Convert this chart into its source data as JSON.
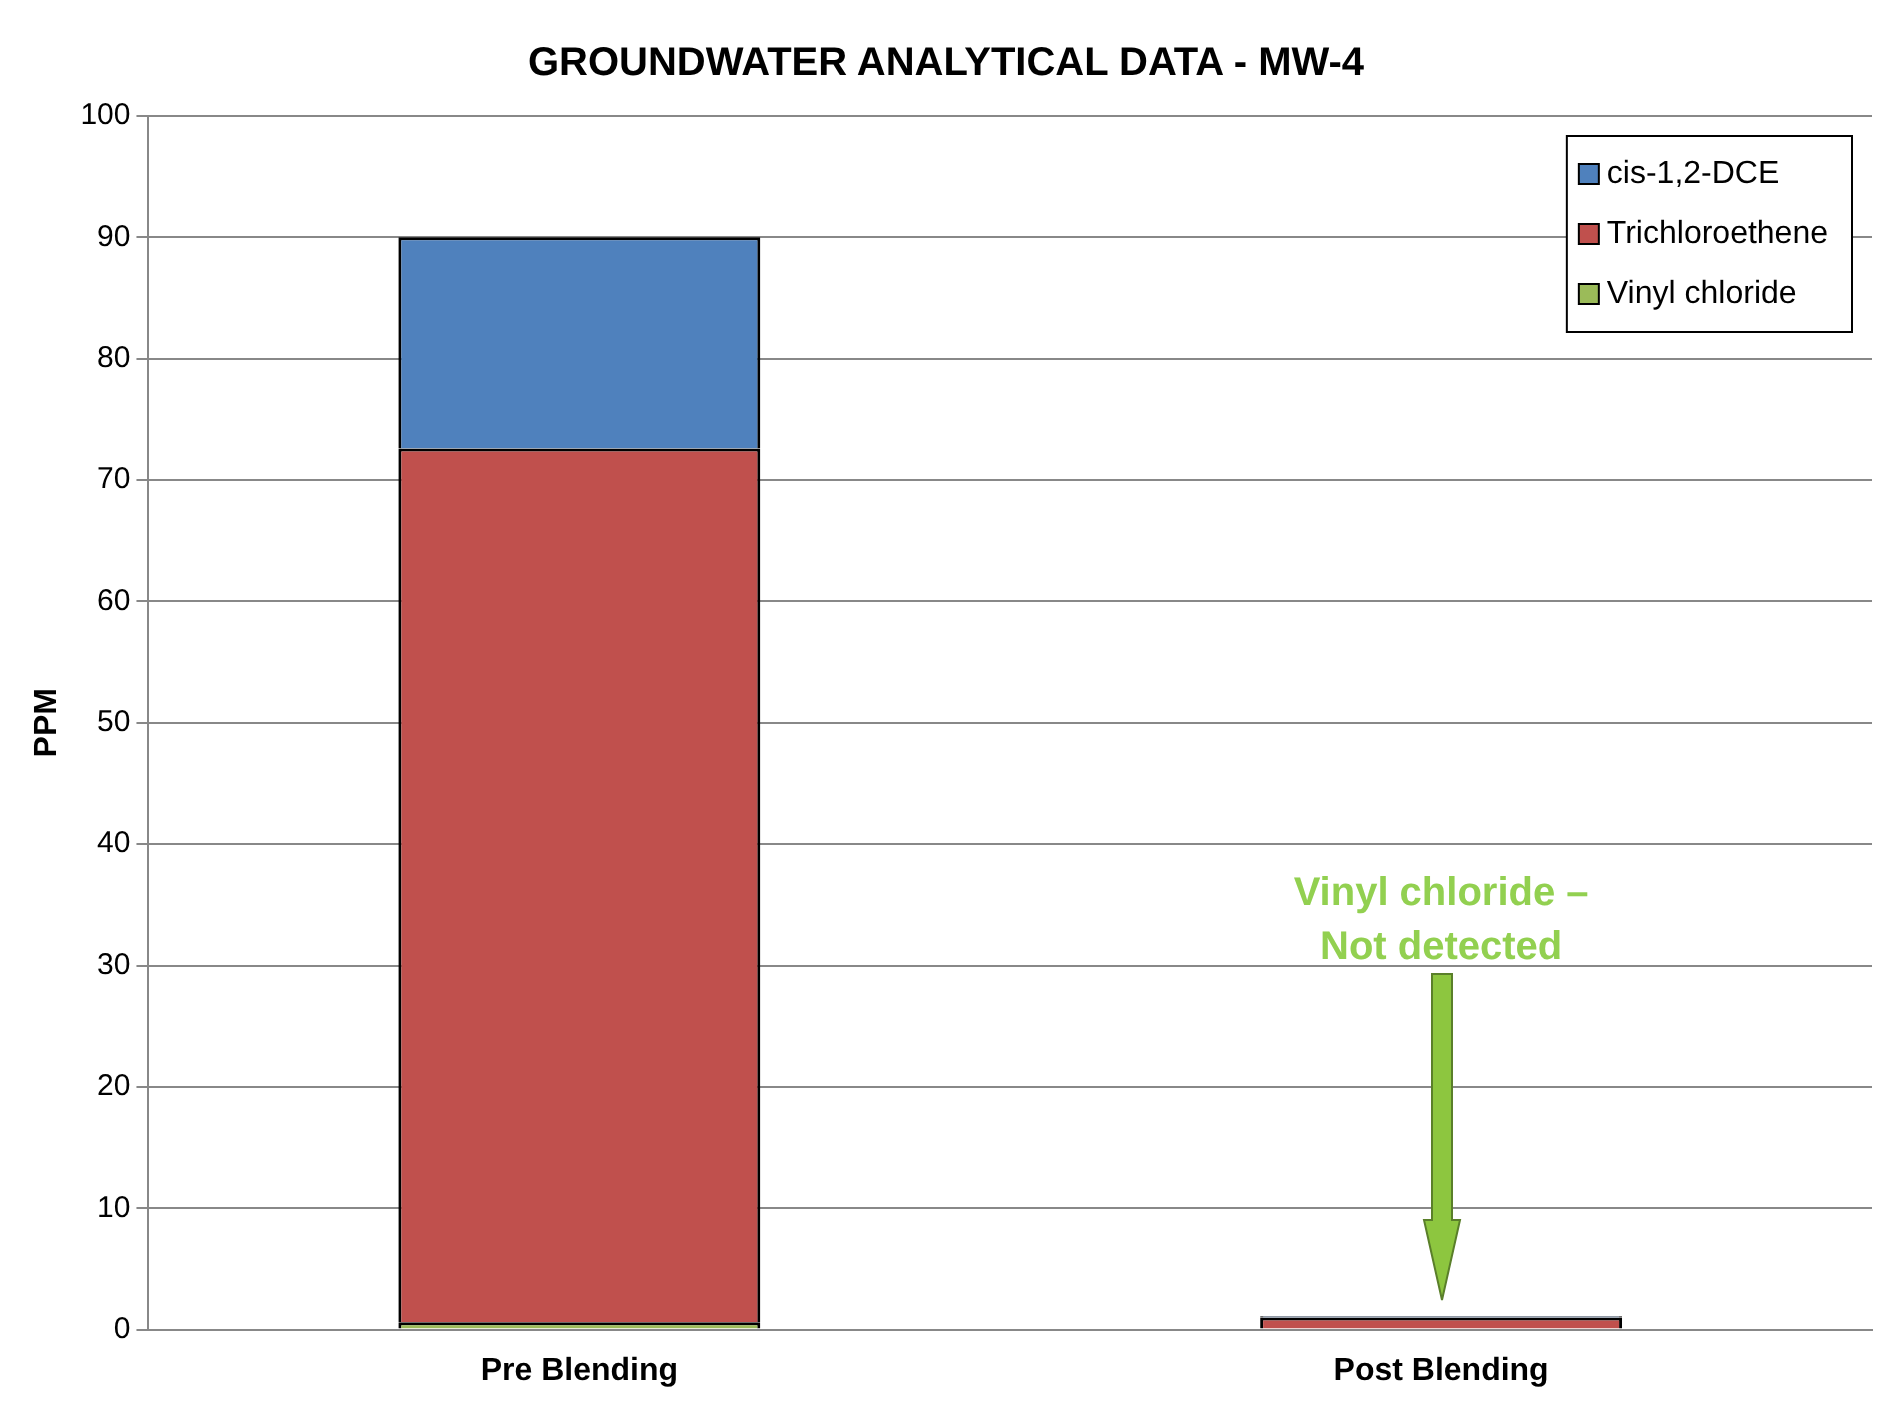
{
  "chart_data": {
    "type": "bar",
    "title": "GROUNDWATER ANALYTICAL DATA - MW-4",
    "ylabel": "PPM",
    "categories": [
      "Pre Blending",
      "Post Blending"
    ],
    "series": [
      {
        "name": "Vinyl chloride",
        "color": "#9bbb59",
        "values": [
          0.6,
          null
        ]
      },
      {
        "name": "Trichloroethene",
        "color": "#c0504d",
        "values": [
          72.0,
          1.0
        ]
      },
      {
        "name": "cis-1,2-DCE",
        "color": "#4f81bd",
        "values": [
          17.4,
          0.1
        ]
      }
    ],
    "stacked": true,
    "ylim": [
      0,
      100
    ],
    "yticks": [
      0,
      10,
      20,
      30,
      40,
      50,
      60,
      70,
      80,
      90,
      100
    ],
    "grid": "y",
    "legend": "top right",
    "annotations": [
      "Vinyl chloride –\nNot detected"
    ]
  }
}
